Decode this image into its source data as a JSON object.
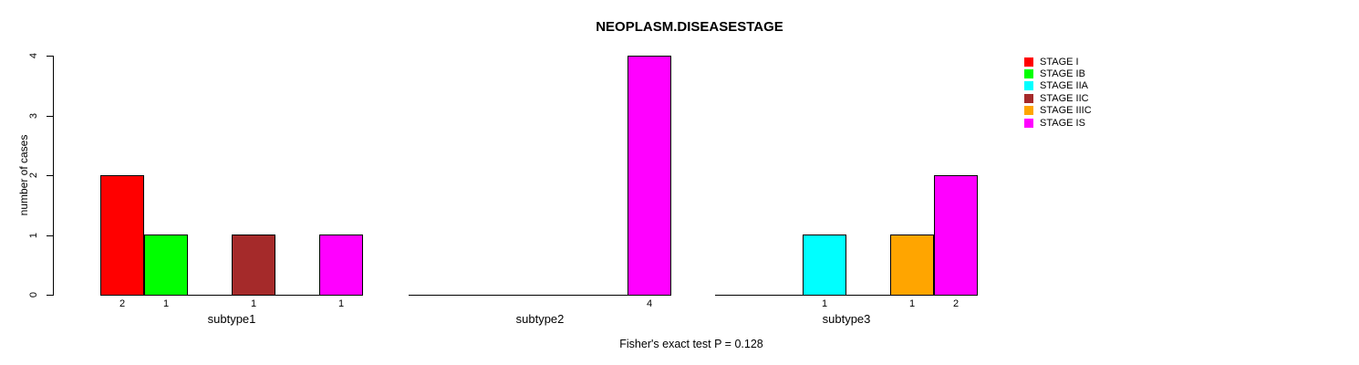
{
  "title": "NEOPLASM.DISEASESTAGE",
  "annotation": "Fisher's exact test P = 0.128",
  "chart_data": {
    "type": "bar",
    "title": "NEOPLASM.DISEASESTAGE",
    "xlabel": "",
    "ylabel": "number of cases",
    "ylim": [
      0,
      4
    ],
    "yticks": [
      0,
      1,
      2,
      3,
      4
    ],
    "grid": false,
    "legend_position": "right",
    "categories": [
      "subtype1",
      "subtype2",
      "subtype3"
    ],
    "series": [
      {
        "name": "STAGE I",
        "color": "#FF0000",
        "values": [
          2,
          0,
          0
        ]
      },
      {
        "name": "STAGE IB",
        "color": "#00FF00",
        "values": [
          1,
          0,
          0
        ]
      },
      {
        "name": "STAGE IIA",
        "color": "#00FFFF",
        "values": [
          0,
          0,
          1
        ]
      },
      {
        "name": "STAGE IIC",
        "color": "#A52A2A",
        "values": [
          1,
          0,
          0
        ]
      },
      {
        "name": "STAGE IIIC",
        "color": "#FFA500",
        "values": [
          0,
          0,
          1
        ]
      },
      {
        "name": "STAGE IS",
        "color": "#FF00FF",
        "values": [
          1,
          4,
          2
        ]
      }
    ],
    "bar_value_labels": {
      "subtype1": [
        2,
        1,
        1,
        1
      ],
      "subtype2": [
        4
      ],
      "subtype3": [
        1,
        1,
        2
      ]
    },
    "annotation": "Fisher's exact test P = 0.128"
  }
}
